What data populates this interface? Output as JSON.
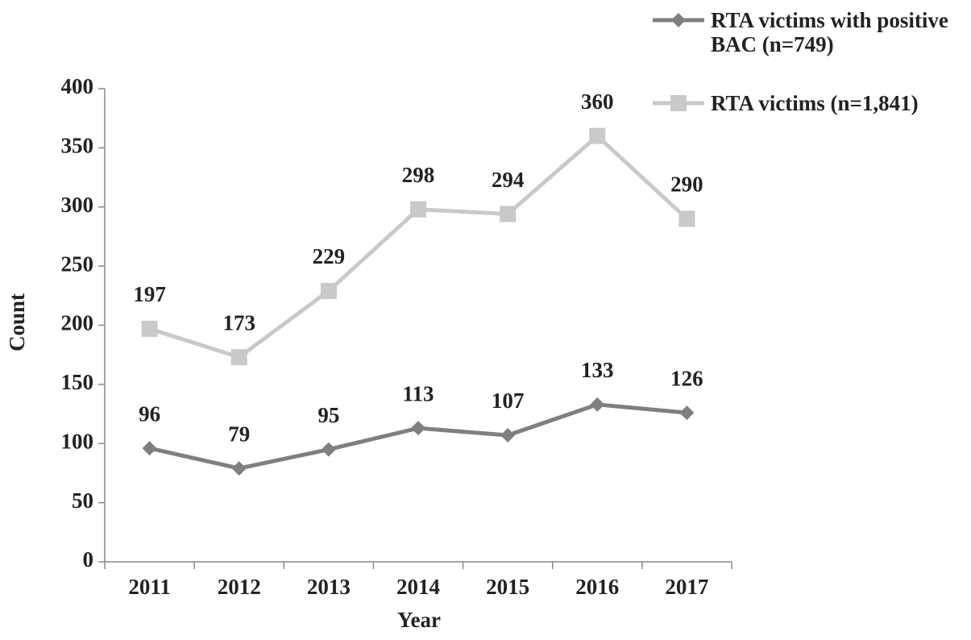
{
  "chart_data": {
    "type": "line",
    "x_label": "Year",
    "y_label": "Count",
    "categories": [
      "2011",
      "2012",
      "2013",
      "2014",
      "2015",
      "2016",
      "2017"
    ],
    "series": [
      {
        "name": "RTA victims with positive BAC (n=749)",
        "color": "#7f7f7f",
        "marker": "diamond",
        "values": [
          96,
          79,
          95,
          113,
          107,
          133,
          126
        ]
      },
      {
        "name": "RTA victims (n=1,841)",
        "color": "#c9c9c9",
        "marker": "square",
        "values": [
          197,
          173,
          229,
          298,
          294,
          360,
          290
        ]
      }
    ],
    "ylim": [
      0,
      400
    ],
    "yticks": [
      0,
      50,
      100,
      150,
      200,
      250,
      300,
      350,
      400
    ],
    "legend": "top-right"
  }
}
